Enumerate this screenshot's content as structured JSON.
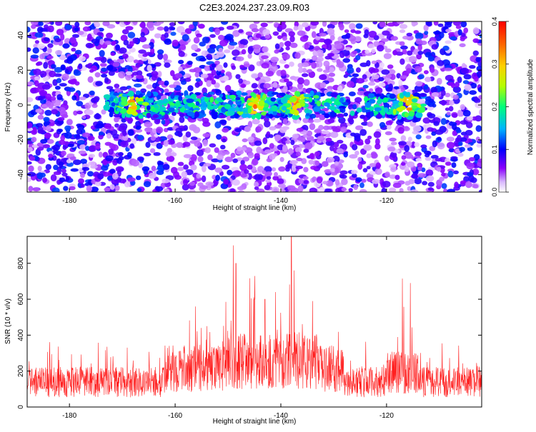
{
  "title": "C2E3.2024.237.23.09.R03",
  "chart_data": [
    {
      "type": "heatmap",
      "xlabel": "Height of straight line (km)",
      "ylabel": "Frequency (Hz)",
      "xlim": [
        -188,
        -102
      ],
      "ylim": [
        -50,
        48
      ],
      "x_ticks": [
        -180,
        -160,
        -140,
        -120
      ],
      "y_ticks": [
        -40,
        -20,
        0,
        20,
        40
      ],
      "colorbar": {
        "label": "Normalized spectral amplitude",
        "range": [
          0,
          0.4
        ],
        "ticks": [
          "0.0",
          "0.1",
          "0.2",
          "0.3",
          "0.4"
        ],
        "colors": [
          "#ffffff",
          "#8a00ff",
          "#0000ff",
          "#00b4ff",
          "#00ff7a",
          "#b4ff00",
          "#ffd000",
          "#ff6a00",
          "#ff0000"
        ]
      },
      "band": {
        "description": "enhanced signal band near 0 Hz",
        "x_range": [
          -173,
          -113
        ],
        "center_freq_hz": 0,
        "peak_x": [
          -168,
          -145,
          -137,
          -116
        ]
      }
    },
    {
      "type": "line",
      "xlabel": "Height of straight line (km)",
      "ylabel": "SNR (10 * v/v)",
      "xlim": [
        -188,
        -102
      ],
      "ylim": [
        0,
        950
      ],
      "x_ticks": [
        -180,
        -160,
        -140,
        -120
      ],
      "y_ticks": [
        0,
        200,
        400,
        600,
        800
      ],
      "color": "#ff2020",
      "baseline_snr": 130,
      "peaks": [
        {
          "x": -154,
          "y": 450
        },
        {
          "x": -149,
          "y": 900
        },
        {
          "x": -148.5,
          "y": 800
        },
        {
          "x": -145,
          "y": 600
        },
        {
          "x": -143,
          "y": 600
        },
        {
          "x": -141,
          "y": 640
        },
        {
          "x": -138,
          "y": 950
        },
        {
          "x": -137.5,
          "y": 760
        },
        {
          "x": -134,
          "y": 590
        },
        {
          "x": -117,
          "y": 715
        },
        {
          "x": -115.5,
          "y": 690
        }
      ]
    }
  ]
}
